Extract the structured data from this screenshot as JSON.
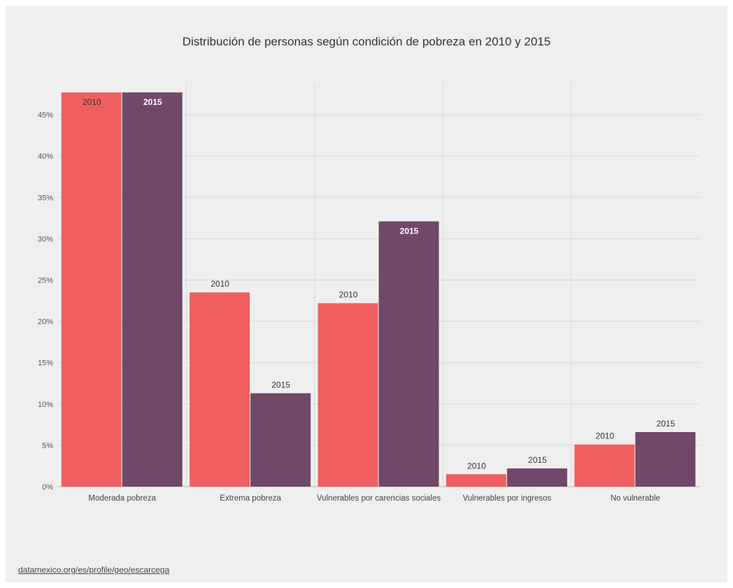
{
  "chart_data": {
    "type": "bar",
    "title": "Distribución de personas según condición de pobreza en 2010 y 2015",
    "categories": [
      "Moderada pobreza",
      "Extrema pobreza",
      "Vulnerables por carencias sociales",
      "Vulnerables por ingresos",
      "No vulnerable"
    ],
    "series": [
      {
        "name": "2010",
        "color": "#f05f5f",
        "values": [
          47.7,
          23.5,
          22.2,
          1.5,
          5.1
        ]
      },
      {
        "name": "2015",
        "color": "#714868",
        "values": [
          47.7,
          11.3,
          32.1,
          2.2,
          6.6
        ]
      }
    ],
    "yticks": [
      "0%",
      "5%",
      "10%",
      "15%",
      "20%",
      "25%",
      "30%",
      "35%",
      "40%",
      "45%"
    ],
    "ylim": [
      0,
      48
    ],
    "grid": true,
    "xlabel": "",
    "ylabel": ""
  },
  "source": "datamexico.org/es/profile/geo/escarcega"
}
